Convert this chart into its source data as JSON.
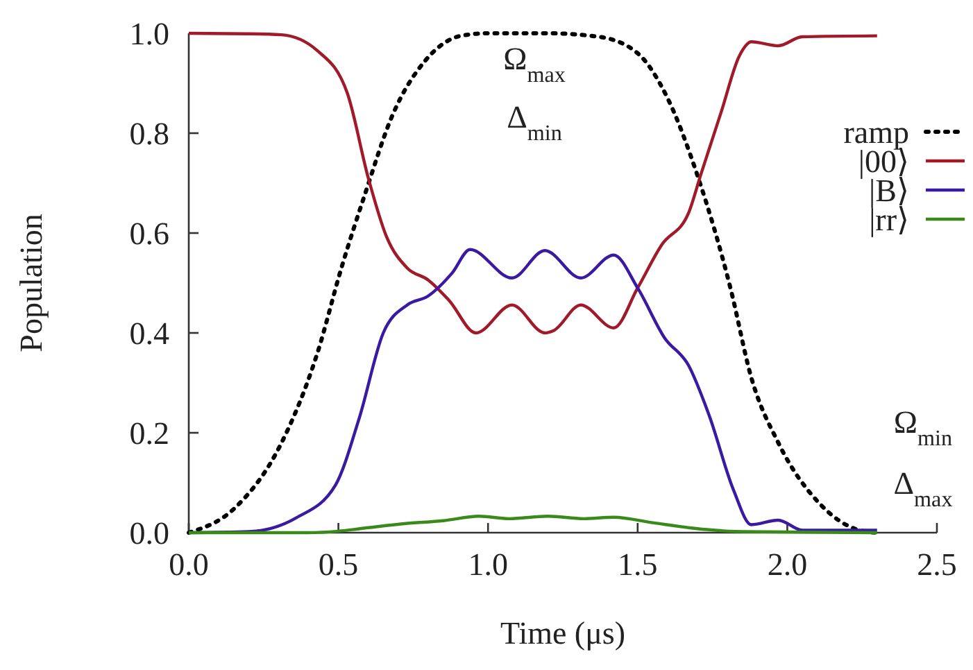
{
  "chart_data": {
    "type": "line",
    "xlabel": "Time (μs)",
    "ylabel": "Population",
    "xlim": [
      0,
      2.5
    ],
    "ylim": [
      0,
      1
    ],
    "xticks": [
      {
        "value": 0,
        "label": "0.0"
      },
      0.5,
      {
        "value": 1,
        "label": "1.0"
      },
      1.5,
      {
        "value": 2,
        "label": "2.0"
      },
      2.5
    ],
    "yticks": [
      {
        "value": 0,
        "label": "0.0"
      },
      0.2,
      0.4,
      0.6,
      0.8,
      {
        "value": 1,
        "label": "1.0"
      }
    ],
    "grid": false,
    "legend": "right",
    "marker": "none",
    "annotations": [
      "Ω$_{max}$",
      "Δ$_{min}$",
      "Ω$_{min}$",
      "Δ$_{max}$"
    ],
    "series": [
      {
        "name": "ramp",
        "color": "#000000",
        "line_style": "dotted",
        "x": [
          0,
          0.155,
          0.31,
          0.43,
          0.51,
          0.59,
          0.68,
          0.79,
          0.91,
          1.0,
          1.2,
          1.37,
          1.5,
          1.6,
          1.7,
          1.81,
          1.88,
          1.97,
          2.11,
          2.24,
          2.3
        ],
        "values": [
          0,
          0.05,
          0.18,
          0.36,
          0.53,
          0.68,
          0.835,
          0.945,
          0.995,
          1,
          1,
          0.993,
          0.96,
          0.87,
          0.715,
          0.49,
          0.31,
          0.18,
          0.057,
          0.005,
          0
        ]
      },
      {
        "name": "|00⟩",
        "color": "#a01a2a",
        "line_style": "solid",
        "x": [
          0,
          0.2,
          0.31,
          0.43,
          0.53,
          0.6,
          0.66,
          0.73,
          0.8,
          0.87,
          0.96,
          1.08,
          1.19,
          1.22,
          1.31,
          1.42,
          1.5,
          1.58,
          1.67,
          1.71,
          1.78,
          1.84,
          1.88,
          1.97,
          2.05,
          2.3
        ],
        "values": [
          1,
          0.999,
          0.997,
          0.965,
          0.88,
          0.71,
          0.594,
          0.53,
          0.506,
          0.465,
          0.4,
          0.456,
          0.4,
          0.405,
          0.456,
          0.41,
          0.49,
          0.576,
          0.64,
          0.715,
          0.844,
          0.955,
          0.983,
          0.975,
          0.993,
          0.995
        ]
      },
      {
        "name": "|B⟩",
        "color": "#3a1aa0",
        "line_style": "solid",
        "x": [
          0,
          0.2,
          0.36,
          0.49,
          0.57,
          0.65,
          0.73,
          0.8,
          0.88,
          0.94,
          1.08,
          1.19,
          1.31,
          1.42,
          1.5,
          1.59,
          1.67,
          1.74,
          1.82,
          1.88,
          1.97,
          2.05,
          2.3
        ],
        "values": [
          0,
          0.002,
          0.03,
          0.095,
          0.23,
          0.4,
          0.456,
          0.474,
          0.52,
          0.567,
          0.51,
          0.565,
          0.51,
          0.556,
          0.49,
          0.39,
          0.335,
          0.233,
          0.086,
          0.016,
          0.025,
          0.005,
          0.005
        ]
      },
      {
        "name": "|rr⟩",
        "color": "#3a8a1a",
        "line_style": "solid",
        "x": [
          0,
          0.4,
          0.5,
          0.6,
          0.72,
          0.85,
          0.97,
          1.07,
          1.2,
          1.32,
          1.42,
          1.55,
          1.7,
          1.85,
          2.3
        ],
        "values": [
          0,
          0,
          0.003,
          0.01,
          0.018,
          0.024,
          0.033,
          0.028,
          0.033,
          0.028,
          0.031,
          0.02,
          0.008,
          0.002,
          0
        ]
      }
    ]
  }
}
